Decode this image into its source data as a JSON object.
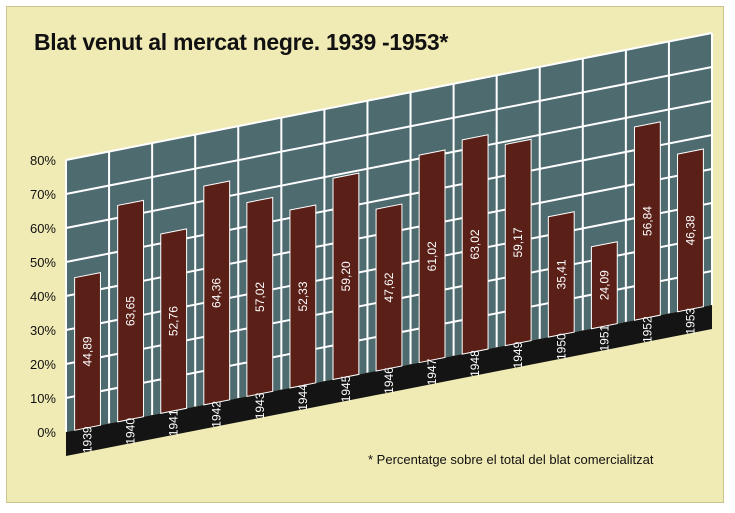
{
  "title": "Blat venut al mercat negre. 1939 -1953*",
  "footnote": "* Percentatge sobre el total del blat comercialitzat",
  "colors": {
    "background": "#f0ebb4",
    "wall": "#4e6b70",
    "grid": "#ffffff",
    "bar": "#5a2018",
    "floor": "#141414"
  },
  "chart_data": {
    "type": "bar",
    "title": "Blat venut al mercat negre. 1939 -1953*",
    "xlabel": "",
    "ylabel": "",
    "ylim": [
      0,
      80
    ],
    "y_ticks": [
      "0%",
      "10%",
      "20%",
      "30%",
      "40%",
      "50%",
      "60%",
      "70%",
      "80%"
    ],
    "categories": [
      "1939",
      "1940",
      "1941",
      "1942",
      "1943",
      "1944",
      "1945",
      "1946",
      "1947",
      "1948",
      "1949",
      "1950",
      "1951",
      "1952",
      "1953"
    ],
    "values": [
      44.89,
      63.65,
      52.76,
      64.36,
      57.02,
      52.33,
      59.2,
      47.62,
      61.02,
      63.02,
      59.17,
      35.41,
      24.09,
      56.84,
      46.38
    ],
    "value_labels": [
      "44,89",
      "63,65",
      "52,76",
      "64,36",
      "57,02",
      "52,33",
      "59,20",
      "47,62",
      "61,02",
      "63,02",
      "59,17",
      "35,41",
      "24,09",
      "56,84",
      "46,38"
    ],
    "grid": true,
    "legend": "none"
  }
}
